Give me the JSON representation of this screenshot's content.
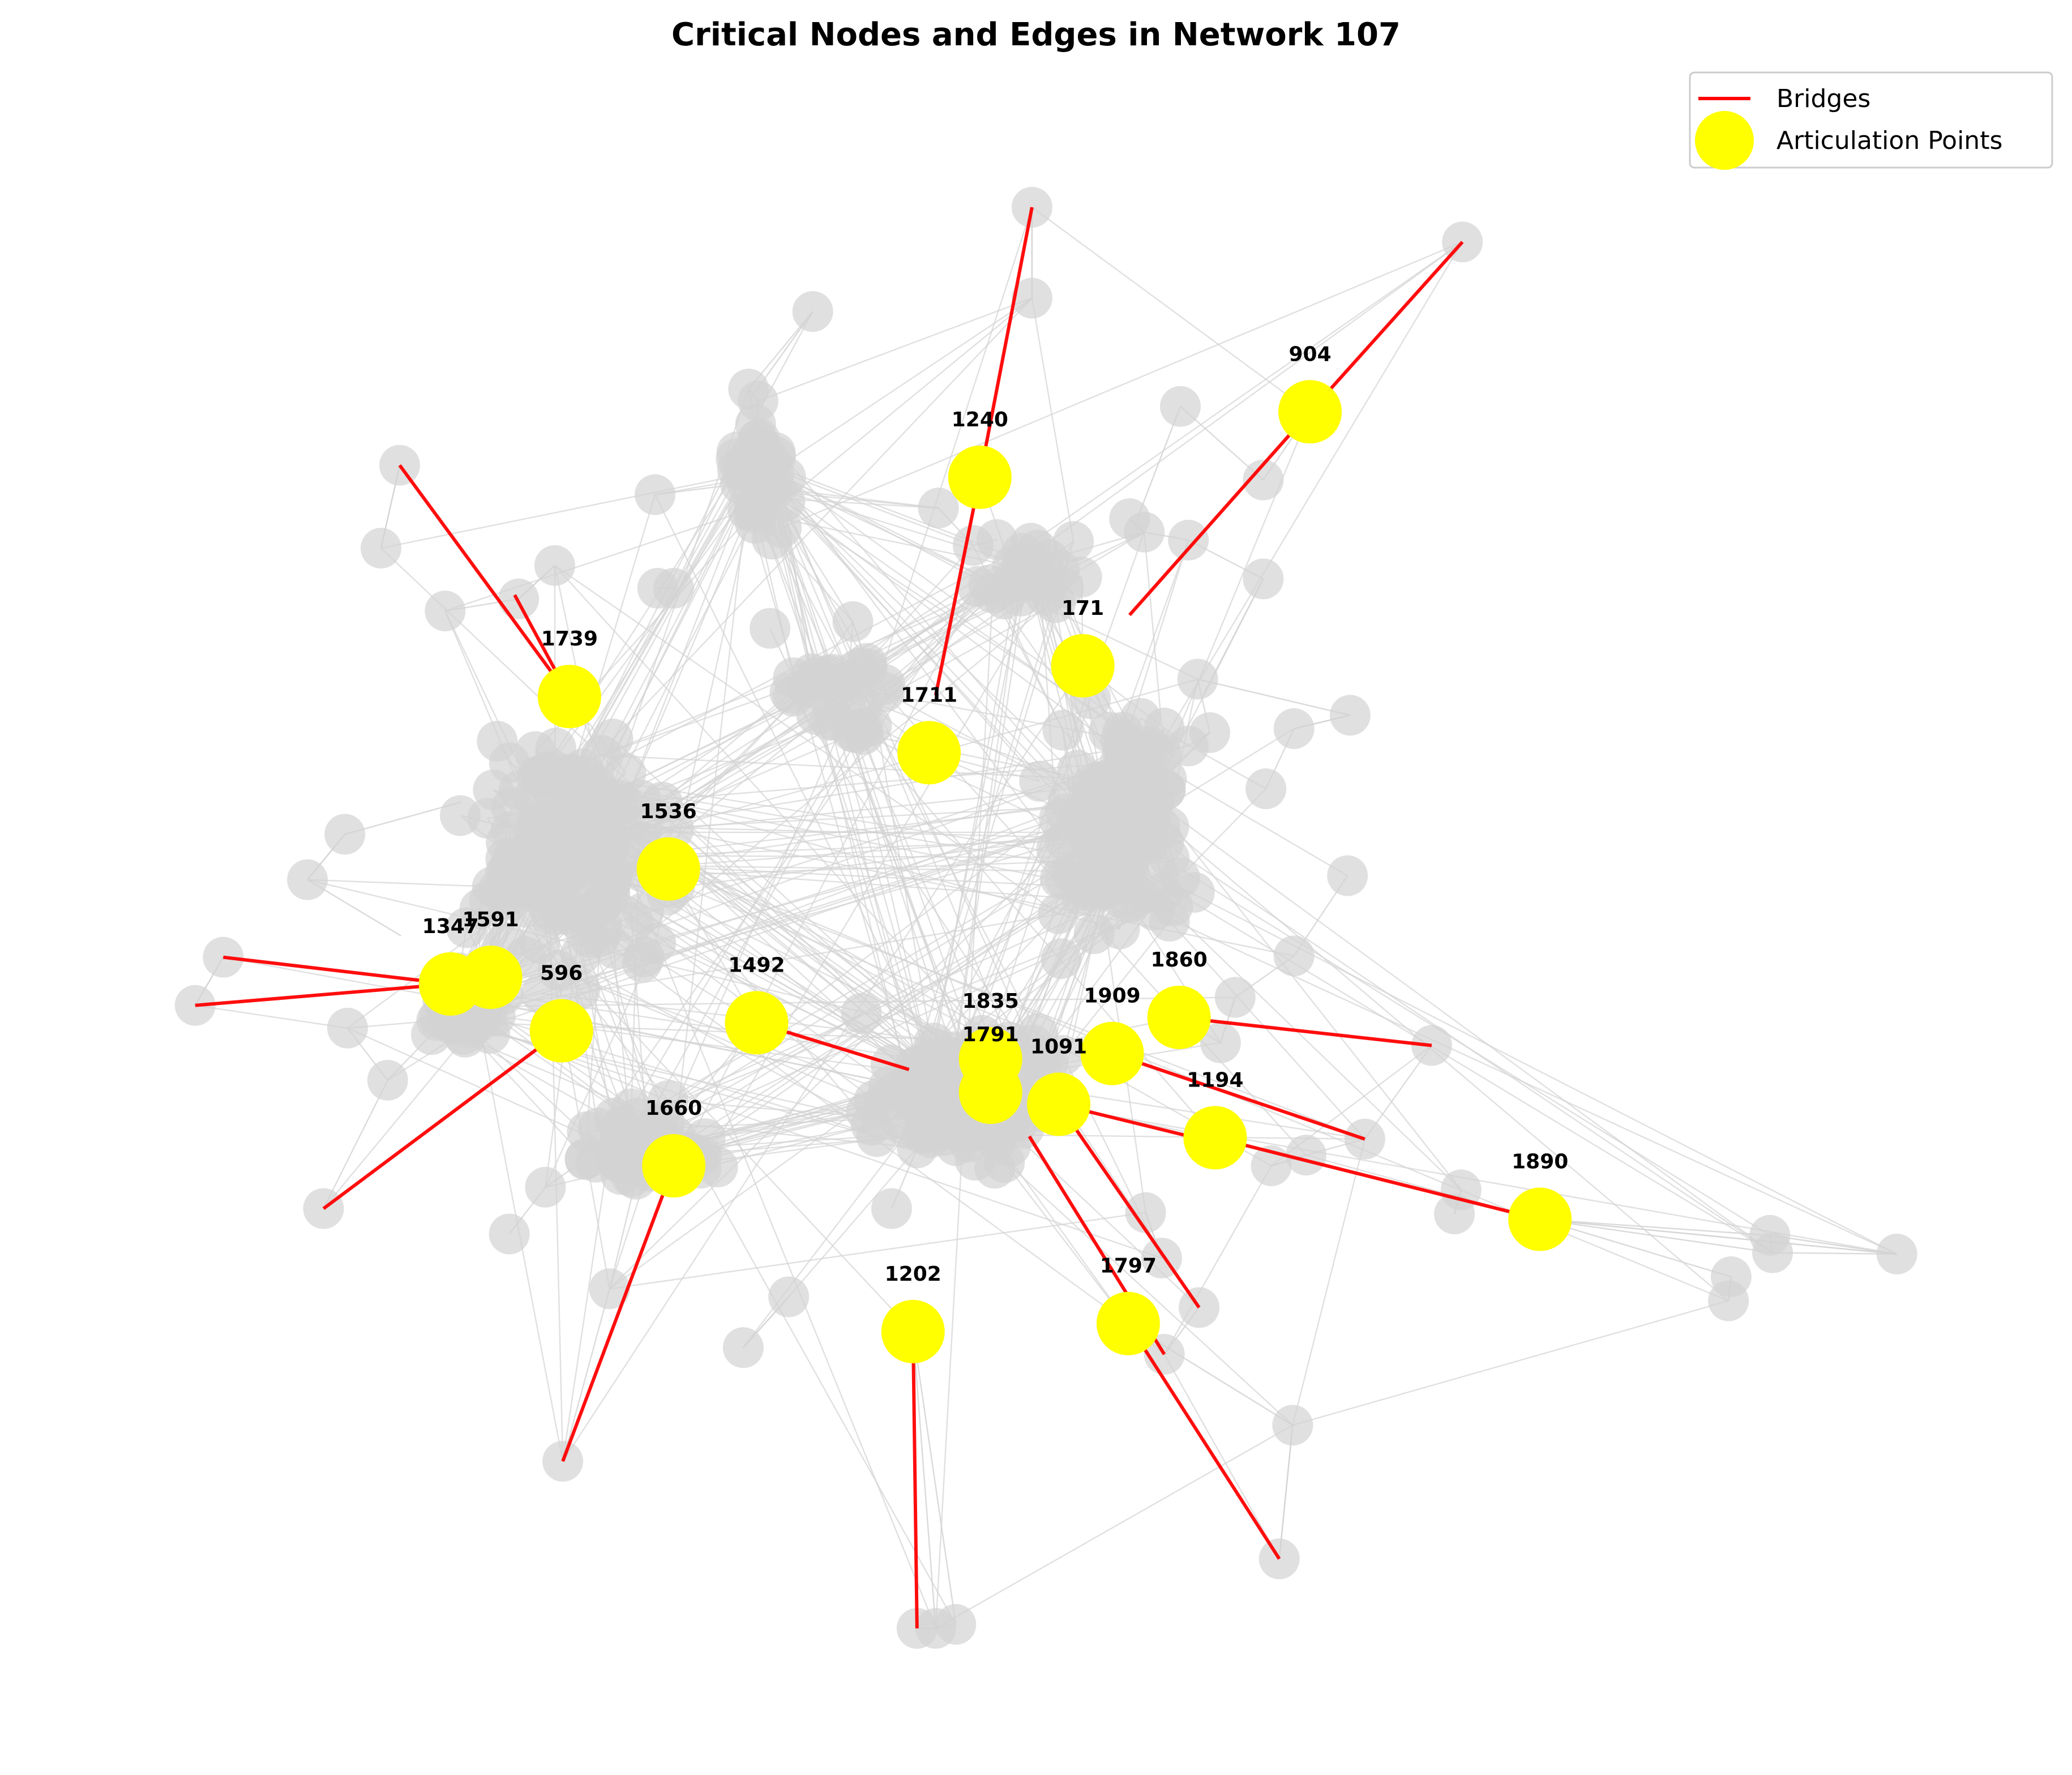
{
  "title": "Critical Nodes and Edges in Network 107",
  "legend": {
    "placement": "top-right",
    "entries": [
      {
        "label": "Bridges",
        "kind": "line"
      },
      {
        "label": "Articulation Points",
        "kind": "marker"
      }
    ]
  },
  "colors": {
    "bridge": "#ff0000",
    "articulation": "#ffff00",
    "node": "#d3d3d3",
    "edge": "#d3d3d3"
  },
  "articulation_points": [
    "904",
    "1240",
    "171",
    "1739",
    "1711",
    "1536",
    "1347",
    "1591",
    "596",
    "1492",
    "1860",
    "1835",
    "1909",
    "1791",
    "1091",
    "1194",
    "1660",
    "1890",
    "1202",
    "1797"
  ]
}
